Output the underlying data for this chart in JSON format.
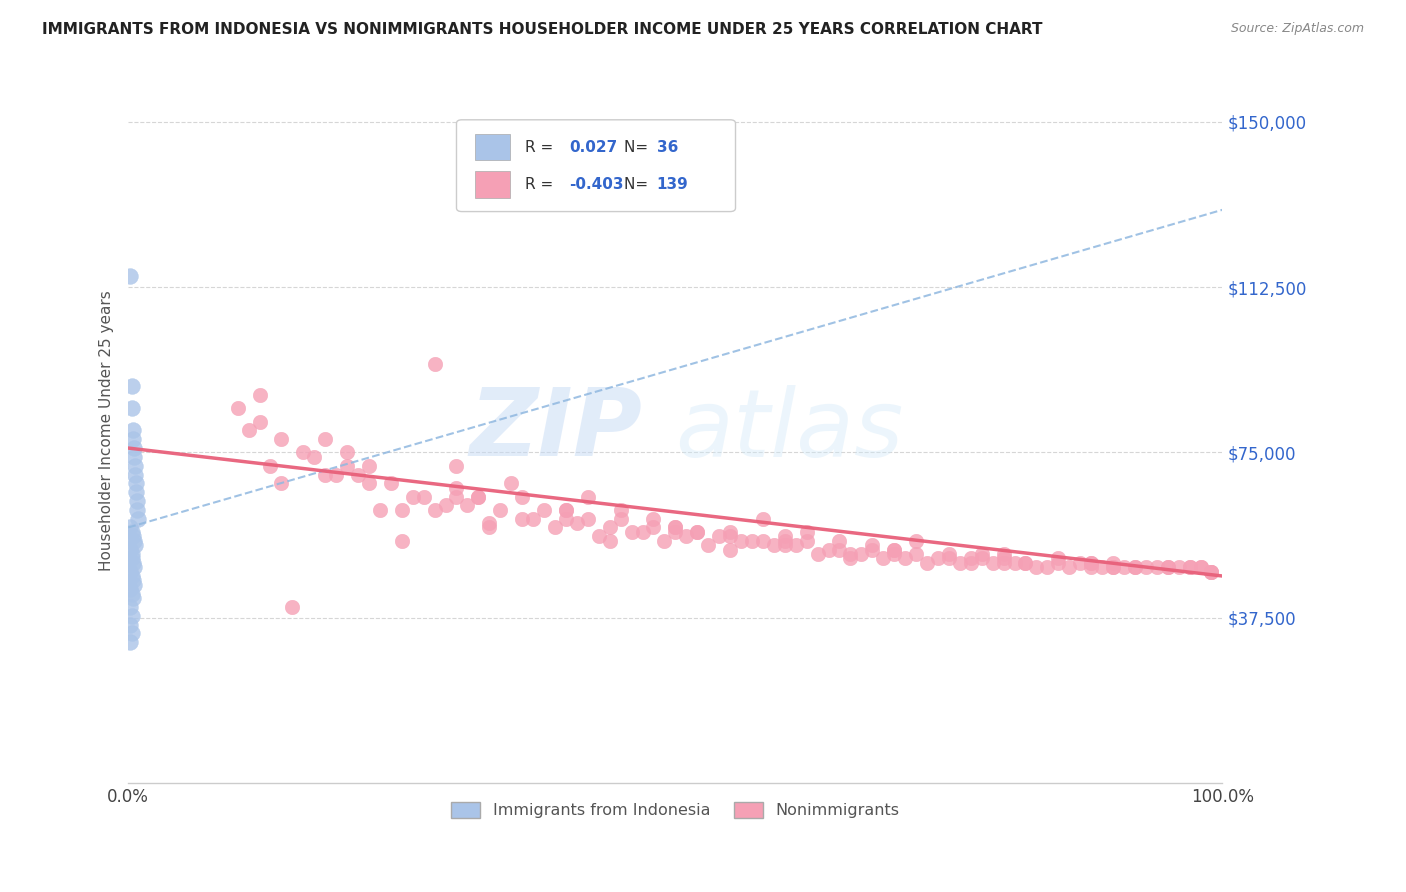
{
  "title": "IMMIGRANTS FROM INDONESIA VS NONIMMIGRANTS HOUSEHOLDER INCOME UNDER 25 YEARS CORRELATION CHART",
  "source": "Source: ZipAtlas.com",
  "ylabel": "Householder Income Under 25 years",
  "xmin": 0.0,
  "xmax": 1.0,
  "ymin": 0,
  "ymax": 160000,
  "yticks": [
    37500,
    75000,
    112500,
    150000
  ],
  "ytick_labels": [
    "$37,500",
    "$75,000",
    "$112,500",
    "$150,000"
  ],
  "blue_R": 0.027,
  "blue_N": 36,
  "pink_R": -0.403,
  "pink_N": 139,
  "blue_color": "#aac4e8",
  "pink_color": "#f5a0b5",
  "blue_line_color": "#90b8e0",
  "pink_line_color": "#e8607a",
  "legend_label_blue": "Immigrants from Indonesia",
  "legend_label_pink": "Nonimmigrants",
  "watermark_zip": "ZIP",
  "watermark_atlas": "atlas",
  "background_color": "#ffffff",
  "blue_line_y0": 58000,
  "blue_line_y1": 130000,
  "pink_line_y0": 76000,
  "pink_line_y1": 47000,
  "blue_scatter_x": [
    0.002,
    0.003,
    0.003,
    0.004,
    0.004,
    0.005,
    0.005,
    0.006,
    0.006,
    0.007,
    0.007,
    0.008,
    0.008,
    0.009,
    0.002,
    0.003,
    0.004,
    0.005,
    0.006,
    0.002,
    0.003,
    0.003,
    0.004,
    0.005,
    0.002,
    0.003,
    0.004,
    0.005,
    0.002,
    0.003,
    0.004,
    0.002,
    0.003,
    0.002,
    0.003,
    0.002
  ],
  "blue_scatter_y": [
    115000,
    90000,
    85000,
    80000,
    78000,
    76000,
    74000,
    72000,
    70000,
    68000,
    66000,
    64000,
    62000,
    60000,
    58000,
    57000,
    56000,
    55000,
    54000,
    53000,
    52000,
    51000,
    50000,
    49000,
    48000,
    47000,
    46000,
    45000,
    44000,
    43000,
    42000,
    40000,
    38000,
    36000,
    34000,
    32000
  ],
  "pink_scatter_x": [
    0.12,
    0.28,
    0.3,
    0.32,
    0.18,
    0.35,
    0.4,
    0.42,
    0.45,
    0.48,
    0.5,
    0.52,
    0.55,
    0.58,
    0.6,
    0.62,
    0.65,
    0.68,
    0.7,
    0.72,
    0.75,
    0.78,
    0.8,
    0.82,
    0.85,
    0.88,
    0.9,
    0.92,
    0.95,
    0.97,
    0.98,
    0.99,
    0.14,
    0.25,
    0.36,
    0.45,
    0.55,
    0.65,
    0.75,
    0.85,
    0.95,
    0.2,
    0.3,
    0.4,
    0.5,
    0.6,
    0.7,
    0.8,
    0.9,
    0.18,
    0.28,
    0.38,
    0.48,
    0.58,
    0.68,
    0.78,
    0.88,
    0.98,
    0.12,
    0.22,
    0.32,
    0.42,
    0.52,
    0.62,
    0.72,
    0.82,
    0.92,
    0.1,
    0.2,
    0.3,
    0.4,
    0.5,
    0.6,
    0.7,
    0.8,
    0.9,
    0.14,
    0.24,
    0.34,
    0.44,
    0.54,
    0.64,
    0.74,
    0.84,
    0.94,
    0.16,
    0.26,
    0.36,
    0.46,
    0.56,
    0.66,
    0.76,
    0.86,
    0.96,
    0.11,
    0.21,
    0.31,
    0.41,
    0.51,
    0.61,
    0.71,
    0.81,
    0.91,
    0.13,
    0.23,
    0.33,
    0.43,
    0.53,
    0.63,
    0.73,
    0.83,
    0.93,
    0.17,
    0.27,
    0.37,
    0.47,
    0.57,
    0.67,
    0.77,
    0.87,
    0.97,
    0.19,
    0.29,
    0.39,
    0.49,
    0.59,
    0.69,
    0.79,
    0.89,
    0.99,
    0.22,
    0.33,
    0.44,
    0.55,
    0.66,
    0.77,
    0.88,
    0.99,
    0.15,
    0.25
  ],
  "pink_scatter_y": [
    88000,
    95000,
    72000,
    65000,
    70000,
    68000,
    62000,
    65000,
    62000,
    60000,
    58000,
    57000,
    57000,
    60000,
    55000,
    57000,
    55000,
    54000,
    53000,
    55000,
    52000,
    52000,
    52000,
    50000,
    51000,
    50000,
    50000,
    49000,
    49000,
    49000,
    49000,
    48000,
    68000,
    62000,
    65000,
    60000,
    56000,
    53000,
    51000,
    50000,
    49000,
    75000,
    67000,
    62000,
    58000,
    56000,
    53000,
    51000,
    49000,
    78000,
    62000,
    62000,
    58000,
    55000,
    53000,
    51000,
    50000,
    49000,
    82000,
    72000,
    65000,
    60000,
    57000,
    55000,
    52000,
    50000,
    49000,
    85000,
    72000,
    65000,
    60000,
    57000,
    54000,
    52000,
    50000,
    49000,
    78000,
    68000,
    62000,
    58000,
    56000,
    53000,
    51000,
    49000,
    49000,
    75000,
    65000,
    60000,
    57000,
    55000,
    52000,
    50000,
    49000,
    49000,
    80000,
    70000,
    63000,
    59000,
    56000,
    54000,
    51000,
    50000,
    49000,
    72000,
    62000,
    58000,
    56000,
    54000,
    52000,
    50000,
    49000,
    49000,
    74000,
    65000,
    60000,
    57000,
    55000,
    52000,
    51000,
    50000,
    49000,
    70000,
    63000,
    58000,
    55000,
    54000,
    51000,
    50000,
    49000,
    48000,
    68000,
    59000,
    55000,
    53000,
    51000,
    50000,
    49000,
    48000,
    40000,
    55000
  ]
}
